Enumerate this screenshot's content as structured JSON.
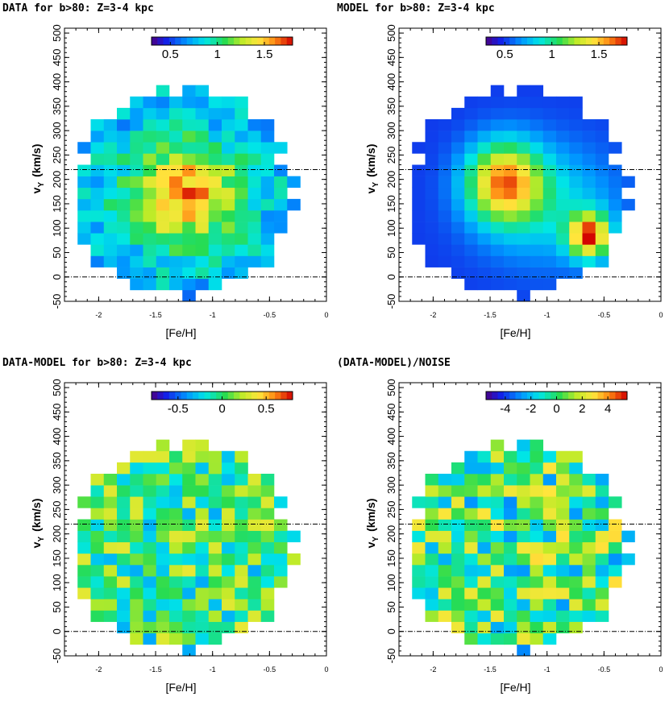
{
  "chart_data": [
    {
      "type": "heatmap",
      "title": "DATA for b>80: Z=3-4 kpc",
      "xlabel": "[Fe/H]",
      "ylabel": "v",
      "ylabel_sub": "Y",
      "ylabel_unit": "(km/s)",
      "xlim": [
        -2.3,
        0
      ],
      "ylim": [
        -50,
        510
      ],
      "xticks": [
        "-2",
        "-1.5",
        "-1",
        "-0.5",
        "0"
      ],
      "yticks": [
        "-50",
        "0",
        "50",
        "100",
        "150",
        "200",
        "250",
        "300",
        "350",
        "400",
        "450",
        "500"
      ],
      "reference_lines": [
        220,
        0
      ],
      "colorbar": {
        "range": [
          0.3,
          1.8
        ],
        "ticks": [
          "0.5",
          "1",
          "1.5"
        ],
        "colormap": "rainbow"
      },
      "field": "data"
    },
    {
      "type": "heatmap",
      "title": "MODEL for b>80: Z=3-4 kpc",
      "xlabel": "[Fe/H]",
      "ylabel": "v",
      "ylabel_sub": "Y",
      "ylabel_unit": "(km/s)",
      "xlim": [
        -2.3,
        0
      ],
      "ylim": [
        -50,
        510
      ],
      "xticks": [
        "-2",
        "-1.5",
        "-1",
        "-0.5",
        "0"
      ],
      "yticks": [
        "-50",
        "0",
        "50",
        "100",
        "150",
        "200",
        "250",
        "300",
        "350",
        "400",
        "450",
        "500"
      ],
      "reference_lines": [
        220,
        0
      ],
      "colorbar": {
        "range": [
          0.3,
          1.8
        ],
        "ticks": [
          "0.5",
          "1",
          "1.5"
        ],
        "colormap": "rainbow"
      },
      "field": "model"
    },
    {
      "type": "heatmap",
      "title": "DATA-MODEL for b>80: Z=3-4 kpc",
      "xlabel": "[Fe/H]",
      "ylabel": "v",
      "ylabel_sub": "Y",
      "ylabel_unit": "(km/s)",
      "xlim": [
        -2.3,
        0
      ],
      "ylim": [
        -50,
        510
      ],
      "xticks": [
        "-2",
        "-1.5",
        "-1",
        "-0.5",
        "0"
      ],
      "yticks": [
        "-50",
        "0",
        "50",
        "100",
        "150",
        "200",
        "250",
        "300",
        "350",
        "400",
        "450",
        "500"
      ],
      "reference_lines": [
        220,
        0
      ],
      "colorbar": {
        "range": [
          -0.8,
          0.8
        ],
        "ticks": [
          "-0.5",
          "0",
          "0.5"
        ],
        "colormap": "rainbow"
      },
      "field": "diff"
    },
    {
      "type": "heatmap",
      "title": "(DATA-MODEL)/NOISE",
      "xlabel": "[Fe/H]",
      "ylabel": "v",
      "ylabel_sub": "Y",
      "ylabel_unit": "(km/s)",
      "xlim": [
        -2.3,
        0
      ],
      "ylim": [
        -50,
        510
      ],
      "xticks": [
        "-2",
        "-1.5",
        "-1",
        "-0.5",
        "0"
      ],
      "yticks": [
        "-50",
        "0",
        "50",
        "100",
        "150",
        "200",
        "250",
        "300",
        "350",
        "400",
        "450",
        "500"
      ],
      "reference_lines": [
        220,
        0
      ],
      "colorbar": {
        "range": [
          -5.5,
          5.5
        ],
        "ticks": [
          "-4",
          "-2",
          "0",
          "2",
          "4"
        ],
        "colormap": "rainbow"
      },
      "field": "noise"
    }
  ]
}
